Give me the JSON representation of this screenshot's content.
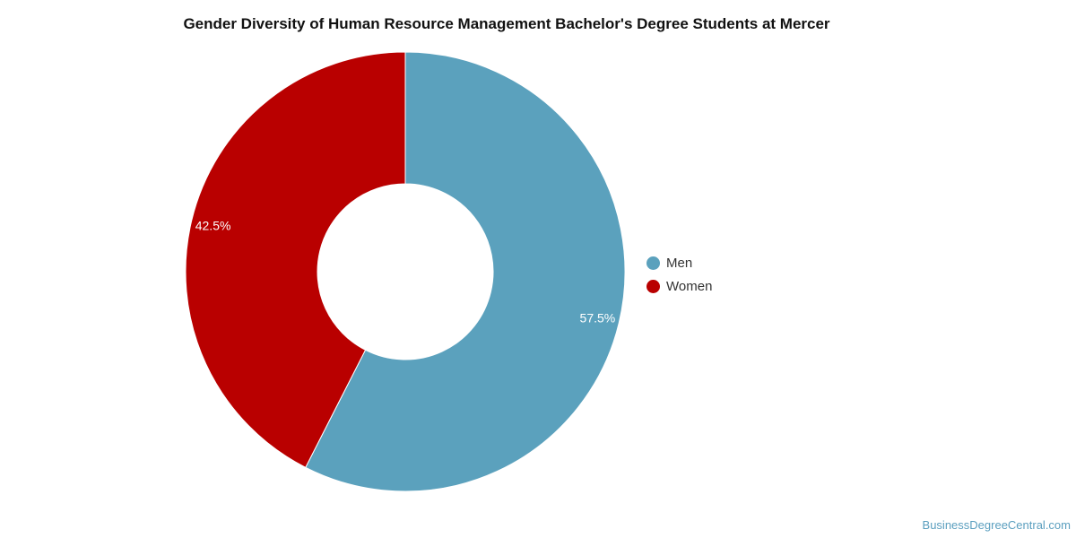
{
  "chart_data": {
    "type": "pie",
    "title": "Gender Diversity of Human Resource Management Bachelor's Degree Students at Mercer",
    "series": [
      {
        "name": "Men",
        "value": 57.5,
        "label": "57.5%",
        "color": "#5ba1bd"
      },
      {
        "name": "Women",
        "value": 42.5,
        "label": "42.5%",
        "color": "#b90000"
      }
    ],
    "donut": true,
    "legend": "right"
  },
  "watermark": "BusinessDegreeCentral.com"
}
